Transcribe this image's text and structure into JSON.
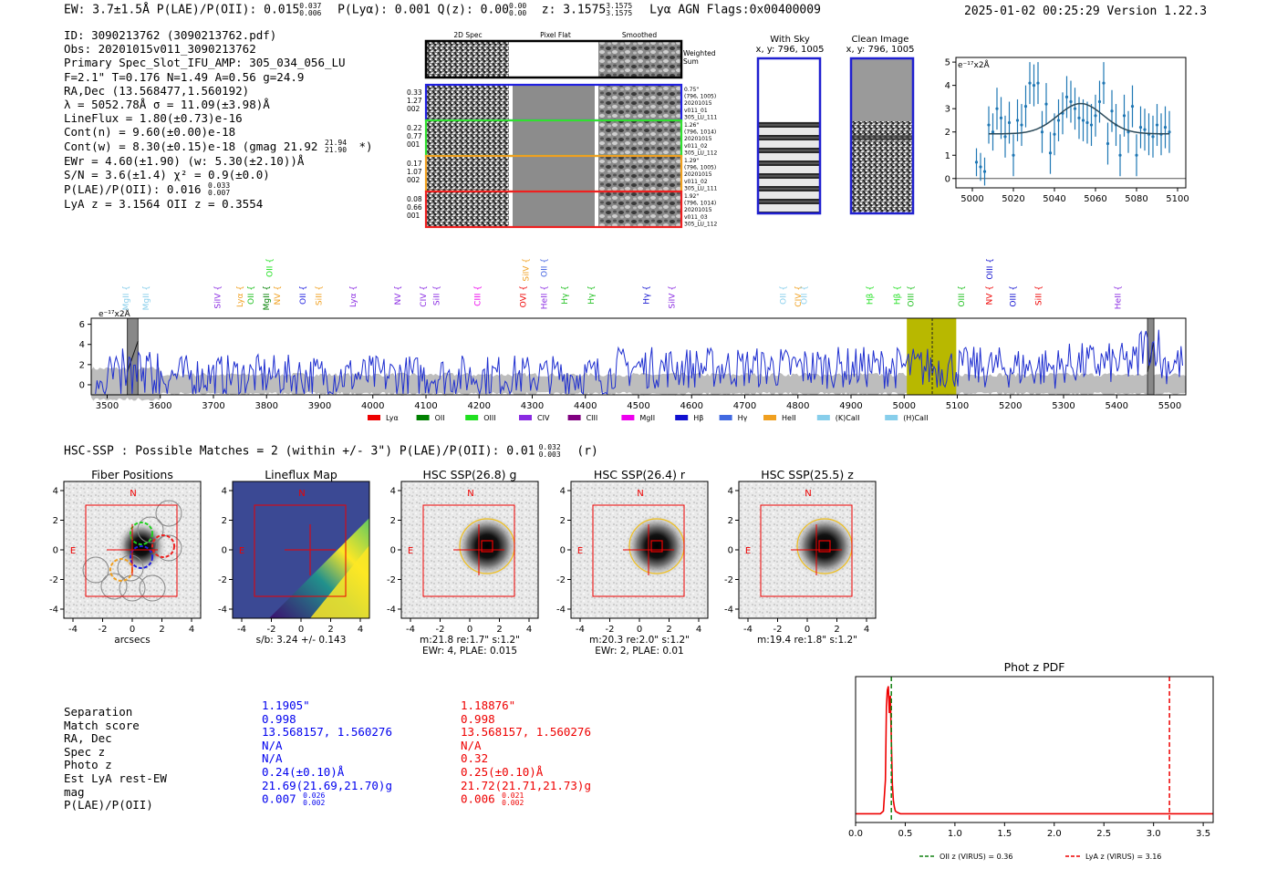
{
  "header": {
    "left": "EW: 3.7±1.5Å  P(LAE)/P(OII): 0.015",
    "plae_sup": "0.037",
    "plae_sub": "0.006",
    "plya": "P(Lyα): 0.001  Q(z): 0.00",
    "qz_sup": "0.00",
    "qz_sub": "0.00",
    "z": "z: 3.1575",
    "z_sup": "3.1575",
    "z_sub": "3.1575",
    "tail": "Lyα  AGN  Flags:0x00400009",
    "right": "2025-01-02 00:25:29  Version 1.22.3"
  },
  "info": {
    "lines": [
      "ID: 3090213762 (3090213762.pdf)",
      "Obs: 20201015v011_3090213762",
      "Primary Spec_Slot_IFU_AMP: 305_034_056_LU",
      "F=2.1\"  T=0.176  N=1.49  A=0.56  g=24.9",
      "RA,Dec (13.568477,1.560192)",
      "λ = 5052.78Å  σ = 11.09(±3.98)Å",
      "LineFlux = 1.80(±0.73)e-16",
      "Cont(n) = 9.60(±0.00)e-18",
      "Cont(w) = 8.30(±0.15)e-18 (gmag 21.92",
      "EWr = 4.60(±1.90) (w: 5.30(±2.10))Å",
      "S/N = 3.6(±1.4)  χ² = 0.9(±0.0)",
      "P(LAE)/P(OII): 0.016",
      "LyA z = 3.1564  OII z = 0.3554"
    ],
    "gmag_sup": "21.94",
    "gmag_sub": "21.90",
    "gmag_tail": "*)",
    "plae_sup": "0.033",
    "plae_sub": "0.007"
  },
  "cutouts": {
    "col_titles": [
      "2D Spec",
      "Pixel Flat",
      "Smoothed"
    ],
    "weighted_label": "Weighted Sum",
    "rows": [
      {
        "left": [
          "0.33",
          "1.27",
          "002"
        ],
        "right": [
          "0.75\"",
          "(796, 1005)",
          "20201015",
          "v011_01",
          "305_LU_111"
        ],
        "color": "#2020e0"
      },
      {
        "left": [
          "0.22",
          "0.77",
          "001"
        ],
        "right": [
          "1.26\"",
          "(796, 1014)",
          "20201015",
          "v011_02",
          "305_LU_112"
        ],
        "color": "#30e030"
      },
      {
        "left": [
          "0.17",
          "1.07",
          "002"
        ],
        "right": [
          "1.29\"",
          "(796, 1005)",
          "20201015",
          "v011_02",
          "305_LU_111"
        ],
        "color": "#f0a020"
      },
      {
        "left": [
          "0.08",
          "0.66",
          "001"
        ],
        "right": [
          "1.92\"",
          "(796, 1014)",
          "20201015",
          "v011_03",
          "305_LU_112"
        ],
        "color": "#ee2020"
      }
    ],
    "with_sky": "With Sky",
    "clean_image": "Clean Image",
    "xy": "x, y: 796, 1005"
  },
  "colors": {
    "blue": "#0000ee",
    "red": "#ee0000",
    "spec_blue": "#1f2fd0",
    "zoom_blue": "#1f77b4",
    "gray": "#b8b8b8",
    "olive": "#b8b800"
  },
  "chart_data": [
    {
      "name": "zoom-spectrum",
      "type": "scatter",
      "unit_label": "e⁻¹⁷x2Å",
      "xlim": [
        4992,
        5104
      ],
      "ylim": [
        -0.4,
        5.2
      ],
      "xticks": [
        5000,
        5020,
        5040,
        5060,
        5080,
        5100
      ],
      "yticks": [
        0,
        1,
        2,
        3,
        4,
        5
      ],
      "x": [
        5002,
        5004,
        5006,
        5008,
        5010,
        5012,
        5014,
        5016,
        5018,
        5020,
        5022,
        5024,
        5026,
        5028,
        5030,
        5032,
        5034,
        5036,
        5038,
        5040,
        5042,
        5044,
        5046,
        5048,
        5050,
        5052,
        5054,
        5056,
        5058,
        5060,
        5062,
        5064,
        5066,
        5068,
        5070,
        5072,
        5074,
        5076,
        5078,
        5080,
        5082,
        5084,
        5086,
        5088,
        5090,
        5092,
        5094,
        5096
      ],
      "y": [
        0.7,
        0.5,
        0.3,
        2.3,
        2.0,
        3.0,
        2.6,
        1.8,
        2.4,
        1.0,
        2.5,
        2.3,
        3.1,
        4.1,
        4.0,
        4.1,
        2.0,
        3.2,
        1.1,
        1.9,
        2.5,
        2.8,
        3.5,
        3.3,
        3.0,
        2.6,
        2.5,
        2.4,
        2.3,
        2.7,
        3.3,
        4.1,
        1.5,
        2.9,
        2.3,
        1.0,
        2.7,
        2.0,
        3.1,
        1.0,
        2.2,
        2.1,
        1.9,
        1.8,
        2.3,
        1.9,
        2.2,
        2.0
      ],
      "err": [
        0.6,
        0.6,
        0.6,
        0.8,
        0.8,
        0.9,
        0.9,
        0.9,
        0.9,
        0.9,
        0.9,
        0.9,
        0.9,
        0.9,
        0.9,
        0.9,
        0.9,
        0.9,
        0.9,
        0.9,
        0.9,
        0.9,
        0.9,
        0.9,
        0.9,
        0.9,
        0.9,
        0.9,
        0.9,
        0.9,
        0.9,
        0.9,
        0.9,
        0.9,
        0.9,
        0.9,
        0.9,
        0.9,
        0.9,
        0.9,
        0.9,
        0.9,
        0.9,
        0.9,
        0.9,
        0.9,
        0.9,
        0.9
      ],
      "fit": {
        "continuum": 1.92,
        "amp": 1.3,
        "center": 5052.8,
        "sigma": 11.1,
        "xrange": [
          5008,
          5096
        ]
      }
    },
    {
      "name": "full-spectrum",
      "type": "line",
      "unit_label": "e⁻¹⁷x2Å",
      "xlim": [
        3470,
        5530
      ],
      "ylim": [
        -1.0,
        6.6
      ],
      "xticks": [
        3500,
        3600,
        3700,
        3800,
        3900,
        4000,
        4100,
        4200,
        4300,
        4400,
        4500,
        4600,
        4700,
        4800,
        4900,
        5000,
        5100,
        5200,
        5300,
        5400,
        5500
      ],
      "yticks": [
        0,
        2,
        4,
        6
      ],
      "highlight": [
        5005,
        5098
      ],
      "line_center": 5052.8,
      "masked": [
        [
          3538,
          3558
        ],
        [
          5458,
          5470
        ]
      ],
      "lines": [
        {
          "label": "MgII",
          "x": 3535,
          "row": 1,
          "color": "#87ceeb"
        },
        {
          "label": "MgII",
          "x": 3573,
          "row": 1,
          "color": "#87ceeb"
        },
        {
          "label": "SiIV",
          "x": 3708,
          "row": 1,
          "color": "#8a2be2"
        },
        {
          "label": "Lyα",
          "x": 3750,
          "row": 1,
          "color": "#f0a020"
        },
        {
          "label": "OII",
          "x": 3770,
          "row": 1,
          "color": "#20c020"
        },
        {
          "label": "MgII",
          "x": 3800,
          "row": 1,
          "color": "#008000"
        },
        {
          "label": "OII",
          "x": 3806,
          "row": 0,
          "color": "#20e020"
        },
        {
          "label": "NV",
          "x": 3820,
          "row": 1,
          "color": "#f0a020"
        },
        {
          "label": "OII",
          "x": 3868,
          "row": 1,
          "color": "#2020e0"
        },
        {
          "label": "SiII",
          "x": 3898,
          "row": 1,
          "color": "#f0a020"
        },
        {
          "label": "Lyα",
          "x": 3963,
          "row": 1,
          "color": "#8a2be2"
        },
        {
          "label": "NV",
          "x": 4047,
          "row": 1,
          "color": "#8a2be2"
        },
        {
          "label": "CIV",
          "x": 4095,
          "row": 1,
          "color": "#8a2be2"
        },
        {
          "label": "SiII",
          "x": 4120,
          "row": 1,
          "color": "#8a2be2"
        },
        {
          "label": "CIII",
          "x": 4197,
          "row": 1,
          "color": "#ee00ee"
        },
        {
          "label": "SiIV",
          "x": 4288,
          "row": 0,
          "color": "#f0a020"
        },
        {
          "label": "OVI",
          "x": 4283,
          "row": 1,
          "color": "#ee0000"
        },
        {
          "label": "OII",
          "x": 4322,
          "row": 0,
          "color": "#4060e0"
        },
        {
          "label": "HeII",
          "x": 4322,
          "row": 1,
          "color": "#8a2be2"
        },
        {
          "label": "Hγ",
          "x": 4361,
          "row": 1,
          "color": "#20c020"
        },
        {
          "label": "Hγ",
          "x": 4411,
          "row": 1,
          "color": "#20c020"
        },
        {
          "label": "Hγ",
          "x": 4515,
          "row": 1,
          "color": "#1010d0"
        },
        {
          "label": "SiIV",
          "x": 4563,
          "row": 1,
          "color": "#8a2be2"
        },
        {
          "label": "OII",
          "x": 4772,
          "row": 1,
          "color": "#87ceeb"
        },
        {
          "label": "CIV",
          "x": 4800,
          "row": 1,
          "color": "#f0a020"
        },
        {
          "label": "OII",
          "x": 4812,
          "row": 1,
          "color": "#87ceeb"
        },
        {
          "label": "Hβ",
          "x": 4935,
          "row": 1,
          "color": "#20e020"
        },
        {
          "label": "Hβ",
          "x": 4987,
          "row": 1,
          "color": "#20e020"
        },
        {
          "label": "OIII",
          "x": 5012,
          "row": 1,
          "color": "#20c020"
        },
        {
          "label": "OIII",
          "x": 5108,
          "row": 1,
          "color": "#20c020"
        },
        {
          "label": "OIII",
          "x": 5161,
          "row": 0,
          "color": "#1010d0"
        },
        {
          "label": "NV",
          "x": 5160,
          "row": 1,
          "color": "#ee0000"
        },
        {
          "label": "OIII",
          "x": 5205,
          "row": 1,
          "color": "#1010d0"
        },
        {
          "label": "SiII",
          "x": 5253,
          "row": 1,
          "color": "#ee0000"
        },
        {
          "label": "HeII",
          "x": 5402,
          "row": 1,
          "color": "#8a2be2"
        }
      ],
      "legend": [
        {
          "label": "Lyα",
          "color": "#ee0000"
        },
        {
          "label": "OII",
          "color": "#008000"
        },
        {
          "label": "OIII",
          "color": "#20e020"
        },
        {
          "label": "CIV",
          "color": "#8a2be2"
        },
        {
          "label": "CIII",
          "color": "#800080"
        },
        {
          "label": "MgII",
          "color": "#ee00ee"
        },
        {
          "label": "Hβ",
          "color": "#1010d0"
        },
        {
          "label": "Hγ",
          "color": "#4169e1"
        },
        {
          "label": "HeII",
          "color": "#f0a020"
        },
        {
          "label": "(K)CaII",
          "color": "#87ceeb"
        },
        {
          "label": "(H)CaII",
          "color": "#87ceeb"
        }
      ]
    },
    {
      "name": "phot-z-pdf",
      "type": "line",
      "title": "Phot z PDF",
      "xlim": [
        0.0,
        3.6
      ],
      "ylim": [
        0,
        1.0
      ],
      "xticks": [
        0.0,
        0.5,
        1.0,
        1.5,
        2.0,
        2.5,
        3.0,
        3.5
      ],
      "x": [
        0.0,
        0.25,
        0.28,
        0.3,
        0.31,
        0.32,
        0.33,
        0.34,
        0.35,
        0.36,
        0.37,
        0.38,
        0.39,
        0.4,
        0.42,
        0.45,
        0.5,
        3.6
      ],
      "y": [
        0.0,
        0.0,
        0.02,
        0.25,
        0.8,
        0.92,
        0.95,
        0.75,
        0.88,
        0.55,
        0.22,
        0.1,
        0.05,
        0.02,
        0.01,
        0.0,
        0.0,
        0.0
      ],
      "oii_z": 0.36,
      "lya_z": 3.16,
      "legend": [
        "OII z (VIRUS) = 0.36",
        "LyA z (VIRUS) = 3.16"
      ]
    }
  ],
  "hsc": {
    "summary": "HSC-SSP : Possible Matches = 2 (within +/- 3\")  P(LAE)/P(OII): 0.01",
    "sum_sup": "0.032",
    "sum_sub": "0.003",
    "sum_tail": "(r)",
    "panels": [
      {
        "title": "Fiber Positions",
        "captions": [
          "arcsecs"
        ]
      },
      {
        "title": "Lineflux Map",
        "captions": [
          "s/b: 3.24 +/- 0.143"
        ]
      },
      {
        "title": "HSC SSP(26.8) g",
        "captions": [
          "m:21.8  re:1.7\"  s:1.2\"",
          "EWr: 4, PLAE: 0.015"
        ]
      },
      {
        "title": "HSC SSP(26.4) r",
        "captions": [
          "m:20.3  re:2.0\"  s:1.2\"",
          "EWr: 2, PLAE: 0.01"
        ]
      },
      {
        "title": "HSC SSP(25.5) z",
        "captions": [
          "m:19.4  re:1.8\"  s:1.2\""
        ]
      }
    ],
    "n_label": "N",
    "e_label": "E",
    "ticks": [
      "-4",
      "-2",
      "0",
      "2",
      "4"
    ]
  },
  "matches": {
    "labels": [
      "Separation",
      "Match score",
      "RA, Dec",
      "Spec z",
      "Photo z",
      "Est LyA rest-EW",
      "mag",
      "P(LAE)/P(OII)"
    ],
    "blue": [
      "1.1905\"",
      "0.998",
      "13.568157, 1.560276",
      "N/A",
      "N/A",
      "0.24(±0.10)Å",
      "21.69(21.69,21.70)g",
      "0.007"
    ],
    "blue_sup": "0.026",
    "blue_sub": "0.002",
    "red": [
      "1.18876\"",
      "0.998",
      "13.568157, 1.560276",
      "N/A",
      "0.32",
      "0.25(±0.10)Å",
      "21.72(21.71,21.73)g",
      "0.006"
    ],
    "red_sup": "0.021",
    "red_sub": "0.002"
  }
}
